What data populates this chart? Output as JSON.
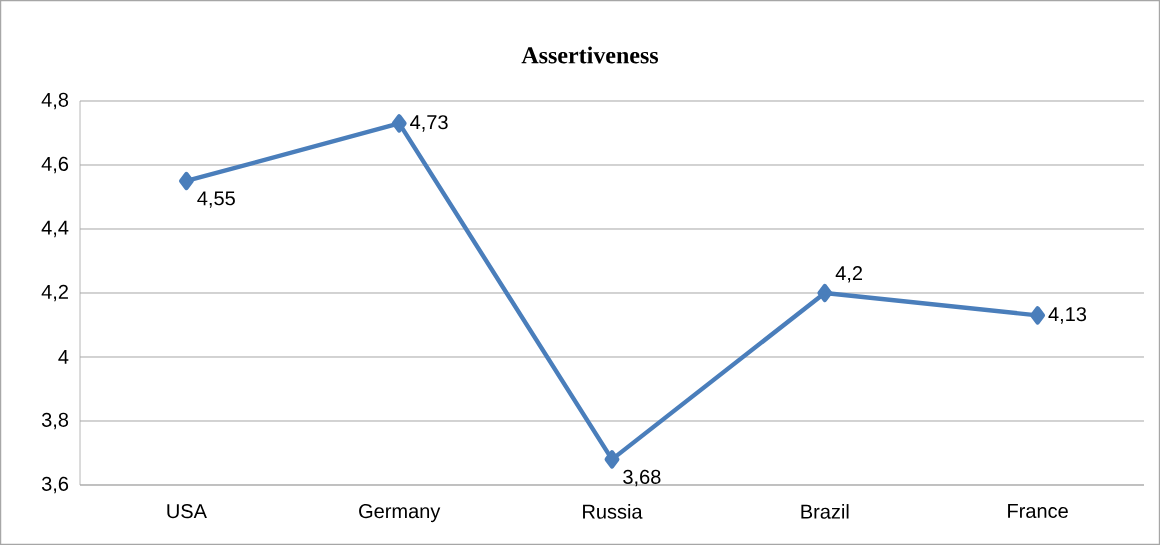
{
  "chart_data": {
    "type": "line",
    "title": "Assertiveness",
    "categories": [
      "USA",
      "Germany",
      "Russia",
      "Brazil",
      "France"
    ],
    "values": [
      4.55,
      4.73,
      3.68,
      4.2,
      4.13
    ],
    "value_labels": [
      "4,55",
      "4,73",
      "3,68",
      "4,2",
      "4,13"
    ],
    "color": "#4a7ebb",
    "marker": "diamond",
    "line_style": "solid",
    "grid": "y",
    "ylim": [
      3.6,
      4.8
    ],
    "yticks": [
      {
        "value": 3.6,
        "label": "3,6"
      },
      {
        "value": 3.8,
        "label": "3,8"
      },
      4,
      {
        "value": 4.2,
        "label": "4,2"
      },
      {
        "value": 4.4,
        "label": "4,4"
      },
      {
        "value": 4.6,
        "label": "4,6"
      },
      {
        "value": 4.8,
        "label": "4,8"
      }
    ]
  }
}
